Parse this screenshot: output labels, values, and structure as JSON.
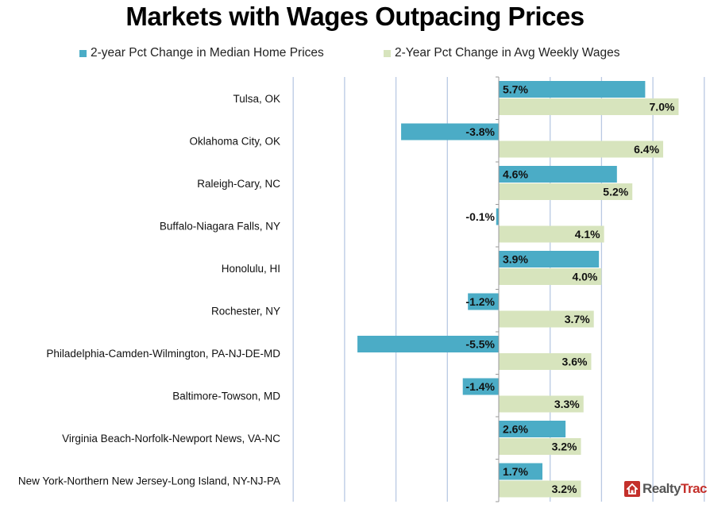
{
  "chart_data": {
    "type": "bar",
    "orientation": "horizontal",
    "title": "Markets with Wages Outpacing Prices",
    "xlabel": "",
    "ylabel": "",
    "xlim": [
      -8,
      8
    ],
    "grid": true,
    "legend_position": "top",
    "categories": [
      "Tulsa, OK",
      "Oklahoma City, OK",
      "Raleigh-Cary, NC",
      "Buffalo-Niagara Falls, NY",
      "Honolulu, HI",
      "Rochester, NY",
      "Philadelphia-Camden-Wilmington, PA-NJ-DE-MD",
      "Baltimore-Towson, MD",
      "Virginia Beach-Norfolk-Newport News, VA-NC",
      "New York-Northern New Jersey-Long Island, NY-NJ-PA"
    ],
    "series": [
      {
        "name": "2-year Pct Change in Median Home Prices",
        "color": "#4bacc6",
        "values": [
          5.7,
          -3.8,
          4.6,
          -0.1,
          3.9,
          -1.2,
          -5.5,
          -1.4,
          2.6,
          1.7
        ],
        "labels": [
          "5.7%",
          "-3.8%",
          "4.6%",
          "-0.1%",
          "3.9%",
          "-1.2%",
          "-5.5%",
          "-1.4%",
          "2.6%",
          "1.7%"
        ]
      },
      {
        "name": "2-Year Pct Change in Avg Weekly Wages",
        "color": "#d7e4bd",
        "values": [
          7.0,
          6.4,
          5.2,
          4.1,
          4.0,
          3.7,
          3.6,
          3.3,
          3.2,
          3.2
        ],
        "labels": [
          "7.0%",
          "6.4%",
          "5.2%",
          "4.1%",
          "4.0%",
          "3.7%",
          "3.6%",
          "3.3%",
          "3.2%",
          "3.2%"
        ]
      }
    ]
  },
  "colors": {
    "gridline": "#b9c9e3",
    "axis": "#9a9a9a",
    "brand_red": "#c4302b"
  },
  "logo": {
    "part1": "Realty",
    "part2": "Trac",
    "icon": "house-icon"
  }
}
